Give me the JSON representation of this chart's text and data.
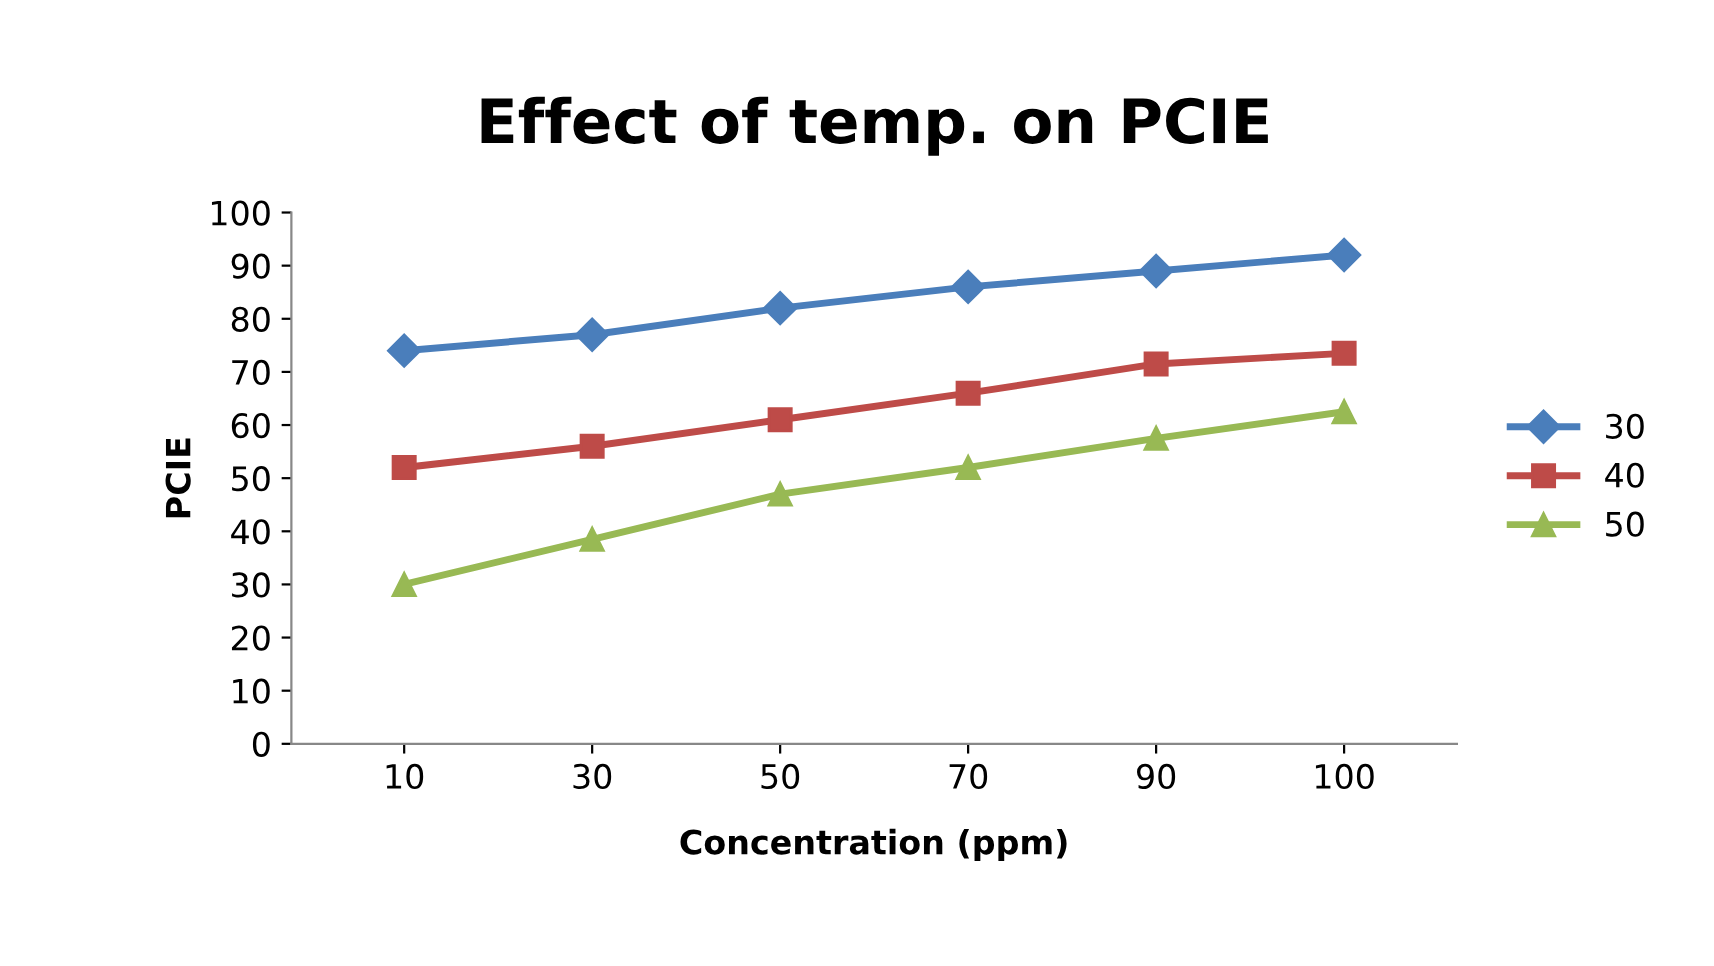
{
  "chart_data": {
    "type": "line",
    "title": "Effect of temp. on PCIE",
    "xlabel": "Concentration (ppm)",
    "ylabel": "PCIE",
    "categories": [
      "10",
      "30",
      "50",
      "70",
      "90",
      "100"
    ],
    "series": [
      {
        "name": "30",
        "color": "#4a7ebb",
        "marker": "diamond",
        "values": [
          74,
          77,
          82,
          86,
          89,
          92
        ]
      },
      {
        "name": "40",
        "color": "#be4b48",
        "marker": "square",
        "values": [
          52,
          56,
          61,
          66,
          71.5,
          73.5
        ]
      },
      {
        "name": "50",
        "color": "#98b954",
        "marker": "triangle",
        "values": [
          30,
          38.5,
          47,
          52,
          57.5,
          62.5
        ]
      }
    ],
    "ylim": [
      0,
      100
    ],
    "yticks": [
      0,
      10,
      20,
      30,
      40,
      50,
      60,
      70,
      80,
      90,
      100
    ],
    "grid": false,
    "legend": "right",
    "line_style": "solid"
  }
}
